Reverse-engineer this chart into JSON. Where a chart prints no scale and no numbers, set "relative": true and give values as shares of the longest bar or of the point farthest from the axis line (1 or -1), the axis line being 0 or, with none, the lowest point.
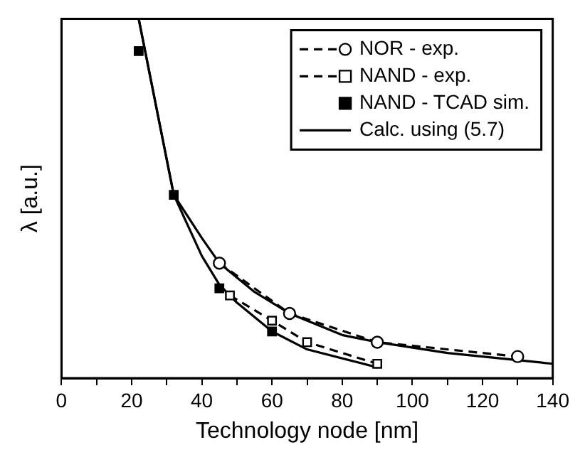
{
  "chart_data": {
    "type": "line",
    "xlabel": "Technology node [nm]",
    "ylabel": "λ [a.u.]",
    "relative": true,
    "legend": "top right",
    "xlim": [
      0,
      140
    ],
    "xticks": [
      0,
      {
        "value": 10,
        "label": null
      },
      20,
      {
        "value": 30,
        "label": null
      },
      40,
      {
        "value": 50,
        "label": null
      },
      60,
      {
        "value": 70,
        "label": null
      },
      80,
      {
        "value": 90,
        "label": null
      },
      100,
      {
        "value": 110,
        "label": null
      },
      120,
      {
        "value": 130,
        "label": null
      },
      140
    ],
    "series": [
      {
        "name": "NOR - exp.",
        "color": "#000000",
        "marker": "circle",
        "line_style": "dashed",
        "x": [
          45,
          65,
          90,
          130
        ],
        "values": [
          0.32,
          0.18,
          0.1,
          0.06
        ]
      },
      {
        "name": "NAND - exp.",
        "color": "#000000",
        "marker": "square",
        "line_style": "dashed",
        "x": [
          48,
          60,
          70,
          90
        ],
        "values": [
          0.23,
          0.16,
          0.1,
          0.04
        ]
      },
      {
        "name": "NAND - TCAD sim.",
        "type": "scatter",
        "color": "#000000",
        "marker": "square",
        "x": [
          22,
          32,
          45,
          60
        ],
        "values": [
          0.91,
          0.51,
          0.25,
          0.13
        ]
      },
      {
        "name": "Calc. using (5.7)",
        "color": "#000000",
        "marker": "none",
        "line_style": "solid",
        "x": [
          22,
          32,
          40,
          45,
          55,
          65,
          80,
          90,
          110,
          140
        ],
        "values": [
          1.0,
          0.51,
          0.39,
          0.32,
          0.24,
          0.18,
          0.12,
          0.1,
          0.07,
          0.04
        ]
      },
      {
        "color": "#000000",
        "marker": "none",
        "line_style": "solid",
        "x": [
          22,
          32,
          40,
          45,
          50,
          60,
          70,
          90
        ],
        "values": [
          1.0,
          0.51,
          0.34,
          0.26,
          0.21,
          0.13,
          0.08,
          0.03
        ]
      }
    ]
  }
}
